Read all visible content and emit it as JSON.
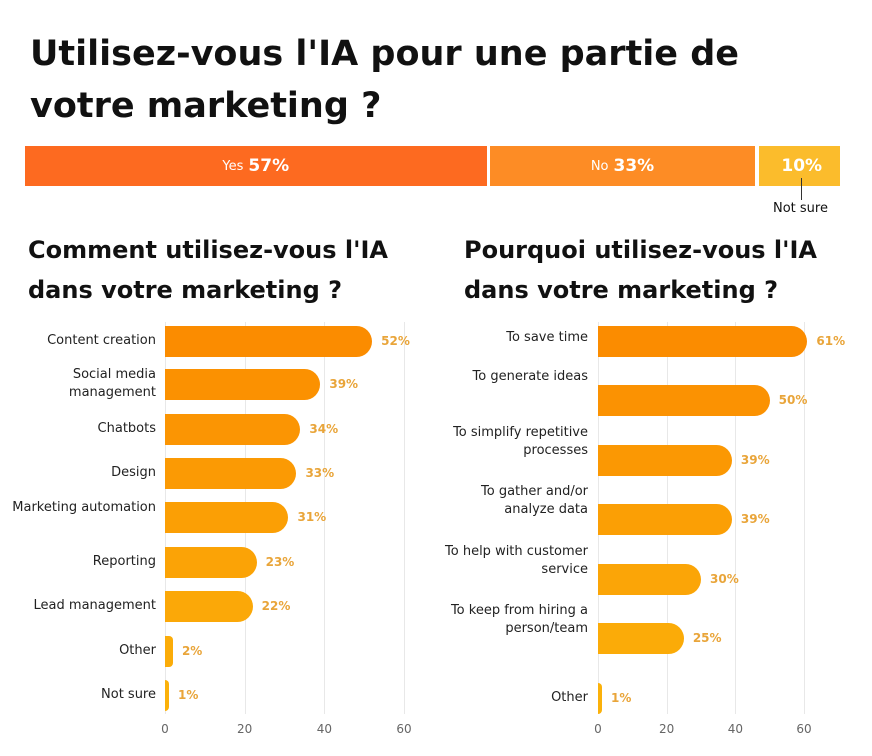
{
  "title": "Utilisez-vous l'IA pour une partie de votre marketing ?",
  "summary": {
    "segments": [
      {
        "label": "Yes",
        "value": "57%",
        "color": "#fd6a20"
      },
      {
        "label": "No",
        "value": "33%",
        "color": "#fd8c25"
      },
      {
        "label": "",
        "value": "10%",
        "color": "#fbbc2c"
      }
    ],
    "note": "Not sure"
  },
  "chart_data": [
    {
      "type": "bar",
      "orientation": "horizontal",
      "title": "Comment utilisez-vous l'IA dans votre marketing ?",
      "categories": [
        "Content creation",
        "Social media management",
        "Chatbots",
        "Design",
        "Marketing automation",
        "Reporting",
        "Lead management",
        "Other",
        "Not sure"
      ],
      "values": [
        52,
        39,
        34,
        33,
        31,
        23,
        22,
        2,
        1
      ],
      "data_labels": [
        "52%",
        "39%",
        "34%",
        "33%",
        "31%",
        "23%",
        "22%",
        "2%",
        "1%"
      ],
      "xlim": [
        0,
        60
      ],
      "xticks": [
        "0",
        "20",
        "40",
        "60"
      ],
      "grid": true
    },
    {
      "type": "bar",
      "orientation": "horizontal",
      "title": "Pourquoi utilisez-vous l'IA dans votre marketing ?",
      "categories": [
        "To save time",
        "To generate ideas",
        "To simplify repetitive processes",
        "To gather and/or analyze data",
        "To help with customer service",
        "To keep from hiring a person/team",
        "Other"
      ],
      "values": [
        61,
        50,
        39,
        39,
        30,
        25,
        1
      ],
      "data_labels": [
        "61%",
        "50%",
        "39%",
        "39%",
        "30%",
        "25%",
        "1%"
      ],
      "xlim": [
        0,
        60
      ],
      "xticks": [
        "0",
        "20",
        "40",
        "60"
      ],
      "grid": true
    }
  ],
  "colors": {
    "bar_top": "#fb8c00",
    "bar_bottom": "#fbb10a",
    "value_label": "#e9a53a"
  }
}
